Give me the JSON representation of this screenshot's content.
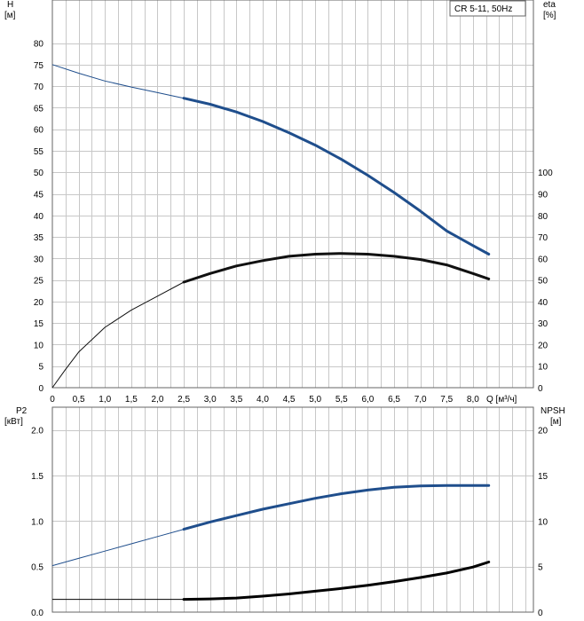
{
  "chart_data": [
    {
      "type": "line",
      "legend_box": "CR 5-11, 50Hz",
      "x_axis": {
        "label": "Q [м³/ч]",
        "range": [
          0,
          9.15
        ],
        "ticks": [
          0,
          0.5,
          1.0,
          1.5,
          2.0,
          2.5,
          3.0,
          3.5,
          4.0,
          4.5,
          5.0,
          5.5,
          6.0,
          6.5,
          7.0,
          7.5,
          8.0
        ],
        "tick_labels": [
          "0",
          "0,5",
          "1,0",
          "1,5",
          "2,0",
          "2,5",
          "3,0",
          "3,5",
          "4,0",
          "4,5",
          "5,0",
          "5,5",
          "6,0",
          "6,5",
          "7,0",
          "7,5",
          "8,0"
        ]
      },
      "left_axis": {
        "label_line1": "H",
        "label_line2": "[м]",
        "range": [
          0,
          90
        ],
        "ticks": [
          0,
          5,
          10,
          15,
          20,
          25,
          30,
          35,
          40,
          45,
          50,
          55,
          60,
          65,
          70,
          75,
          80
        ]
      },
      "right_axis": {
        "label_line1": "eta",
        "label_line2": "[%]",
        "range": [
          0,
          180
        ],
        "ticks": [
          0,
          10,
          20,
          30,
          40,
          50,
          60,
          70,
          80,
          90,
          100
        ]
      },
      "grid": true,
      "series": [
        {
          "name": "H",
          "axis": "left",
          "color": "#1f4e8c",
          "x": [
            0,
            0.5,
            1.0,
            1.5,
            2.0,
            2.5,
            3.0,
            3.5,
            4.0,
            4.5,
            5.0,
            5.5,
            6.0,
            6.5,
            7.0,
            7.5,
            8.0,
            8.3
          ],
          "y": [
            75.0,
            73.0,
            71.2,
            69.8,
            68.5,
            67.2,
            65.8,
            64.0,
            61.8,
            59.2,
            56.3,
            53.0,
            49.3,
            45.3,
            41.0,
            36.4,
            33.0,
            31.0
          ],
          "bold_from_x": 2.5
        },
        {
          "name": "eta",
          "axis": "right",
          "color": "#111111",
          "x": [
            0,
            0.25,
            0.5,
            1.0,
            1.5,
            2.0,
            2.5,
            3.0,
            3.5,
            4.0,
            4.5,
            5.0,
            5.5,
            6.0,
            6.5,
            7.0,
            7.5,
            8.0,
            8.3
          ],
          "y": [
            0,
            8.5,
            16.5,
            28.0,
            36.0,
            42.5,
            49.0,
            53.0,
            56.5,
            59.0,
            61.0,
            62.0,
            62.3,
            62.0,
            61.0,
            59.5,
            57.0,
            53.0,
            50.5
          ],
          "bold_from_x": 2.5
        }
      ]
    },
    {
      "type": "line",
      "x_axis": {
        "range": [
          0,
          9.15
        ],
        "ticks": [
          0,
          0.5,
          1.0,
          1.5,
          2.0,
          2.5,
          3.0,
          3.5,
          4.0,
          4.5,
          5.0,
          5.5,
          6.0,
          6.5,
          7.0,
          7.5,
          8.0
        ]
      },
      "left_axis": {
        "label_line1": "P2",
        "label_line2": "[кВт]",
        "range": [
          0,
          2.25
        ],
        "ticks": [
          0,
          0.5,
          1.0,
          1.5,
          2.0
        ],
        "tick_labels": [
          "0.0",
          "0.5",
          "1.0",
          "1.5",
          "2.0"
        ]
      },
      "right_axis": {
        "label_line1": "NPSH",
        "label_line2": "[м]",
        "range": [
          0,
          22.5
        ],
        "ticks": [
          0,
          5,
          10,
          15,
          20
        ]
      },
      "grid": true,
      "series": [
        {
          "name": "P2",
          "axis": "left",
          "color": "#1f4e8c",
          "x": [
            0,
            0.5,
            1.0,
            1.5,
            2.0,
            2.5,
            3.0,
            3.5,
            4.0,
            4.5,
            5.0,
            5.5,
            6.0,
            6.5,
            7.0,
            7.5,
            8.0,
            8.3
          ],
          "y": [
            0.51,
            0.59,
            0.67,
            0.75,
            0.83,
            0.91,
            0.99,
            1.06,
            1.13,
            1.19,
            1.25,
            1.3,
            1.34,
            1.37,
            1.385,
            1.39,
            1.39,
            1.39
          ],
          "bold_from_x": 2.5
        },
        {
          "name": "NPSH",
          "axis": "right",
          "color": "#000000",
          "x": [
            0,
            2.5,
            3.0,
            3.5,
            4.0,
            4.5,
            5.0,
            5.5,
            6.0,
            6.5,
            7.0,
            7.5,
            8.0,
            8.3
          ],
          "y": [
            1.4,
            1.4,
            1.45,
            1.55,
            1.75,
            2.0,
            2.3,
            2.6,
            2.95,
            3.35,
            3.8,
            4.3,
            4.95,
            5.5
          ],
          "bold_from_x": 2.5
        }
      ]
    }
  ]
}
